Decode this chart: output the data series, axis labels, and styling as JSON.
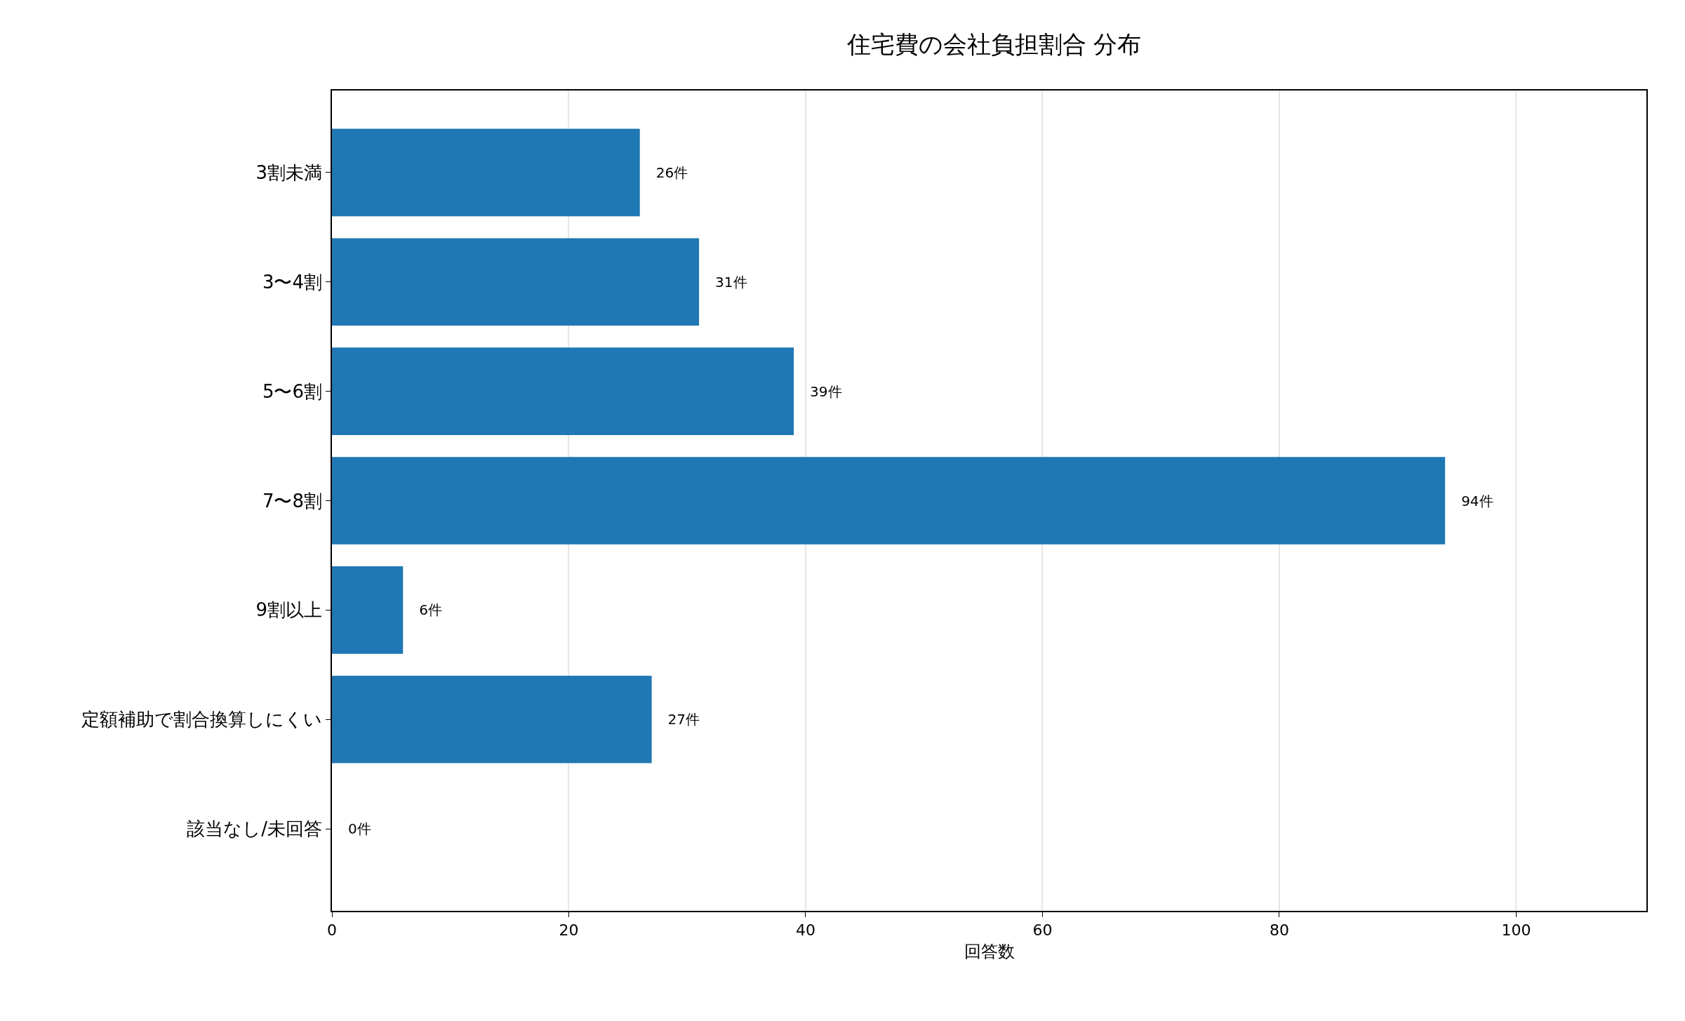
{
  "chart_data": {
    "type": "bar",
    "orientation": "horizontal",
    "title": "住宅費の会社負担割合 分布",
    "xlabel": "回答数",
    "categories": [
      "3割未満",
      "3〜4割",
      "5〜6割",
      "7〜8割",
      "9割以上",
      "定額補助で割合換算しにくい",
      "該当なし/未回答"
    ],
    "values": [
      26,
      31,
      39,
      94,
      6,
      27,
      0
    ],
    "value_labels": [
      "26件",
      "31件",
      "39件",
      "94件",
      "6件",
      "27件",
      "0件"
    ],
    "color": "#1f77b4",
    "xlim": [
      0,
      111
    ],
    "xticks": [
      0,
      20,
      40,
      60,
      80,
      100
    ],
    "grid": "x"
  }
}
